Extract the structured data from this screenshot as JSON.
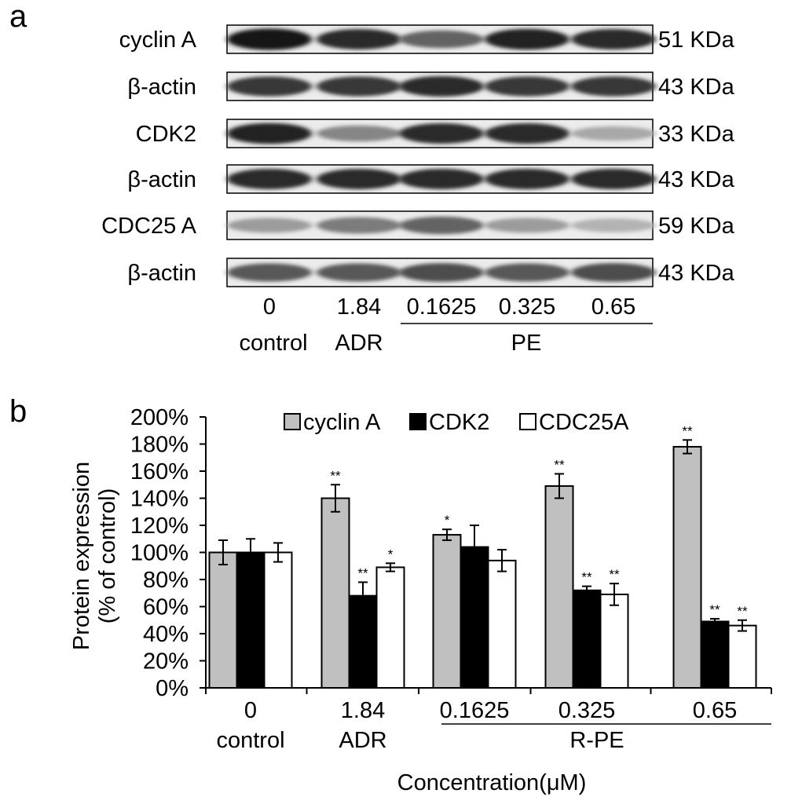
{
  "panel_a": {
    "label": "a",
    "blots": [
      {
        "name": "cyclin A",
        "size": "51 KDa"
      },
      {
        "name": "β-actin",
        "size": "43 KDa"
      },
      {
        "name": "CDK2",
        "size": "33 KDa"
      },
      {
        "name": "β-actin",
        "size": "43 KDa"
      },
      {
        "name": "CDC25 A",
        "size": "59 KDa"
      },
      {
        "name": "β-actin",
        "size": "43 KDa"
      }
    ],
    "lane_doses": [
      "0",
      "1.84",
      "0.1625",
      "0.325",
      "0.65"
    ],
    "lane_groups": [
      "control",
      "ADR",
      "PE"
    ],
    "band_intensity": [
      [
        0.95,
        0.85,
        0.6,
        0.9,
        0.85
      ],
      [
        0.8,
        0.8,
        0.85,
        0.8,
        0.8
      ],
      [
        0.9,
        0.45,
        0.85,
        0.85,
        0.3
      ],
      [
        0.85,
        0.85,
        0.85,
        0.85,
        0.85
      ],
      [
        0.35,
        0.5,
        0.6,
        0.35,
        0.25
      ],
      [
        0.65,
        0.65,
        0.7,
        0.65,
        0.7
      ]
    ]
  },
  "panel_b": {
    "label": "b"
  },
  "chart_data": {
    "type": "bar",
    "categories": [
      "0",
      "1.84",
      "0.1625",
      "0.325",
      "0.65"
    ],
    "group_labels": [
      "control",
      "ADR",
      "R-PE"
    ],
    "xlabel": "Concentration(μM)",
    "ylabel_line1": "Protein expression",
    "ylabel_line2": "(% of control)",
    "ylim": [
      0,
      200
    ],
    "yticks": [
      "0%",
      "20%",
      "40%",
      "60%",
      "80%",
      "100%",
      "120%",
      "140%",
      "160%",
      "180%",
      "200%"
    ],
    "legend_position": "top",
    "series": [
      {
        "name": "cyclin A",
        "color": "#c0c0c0",
        "values": [
          100,
          140,
          113,
          149,
          178
        ],
        "errors": [
          9,
          10,
          4,
          9,
          5
        ],
        "sig": [
          "",
          "**",
          "*",
          "**",
          "**"
        ]
      },
      {
        "name": "CDK2",
        "color": "#000000",
        "values": [
          100,
          68,
          104,
          72,
          49
        ],
        "errors": [
          10,
          10,
          16,
          3,
          2
        ],
        "sig": [
          "",
          "**",
          "",
          "**",
          "**"
        ]
      },
      {
        "name": "CDC25A",
        "color": "#ffffff",
        "values": [
          100,
          89,
          94,
          69,
          46
        ],
        "errors": [
          7,
          3,
          8,
          8,
          4
        ],
        "sig": [
          "",
          "*",
          "",
          "**",
          "**"
        ]
      }
    ]
  }
}
